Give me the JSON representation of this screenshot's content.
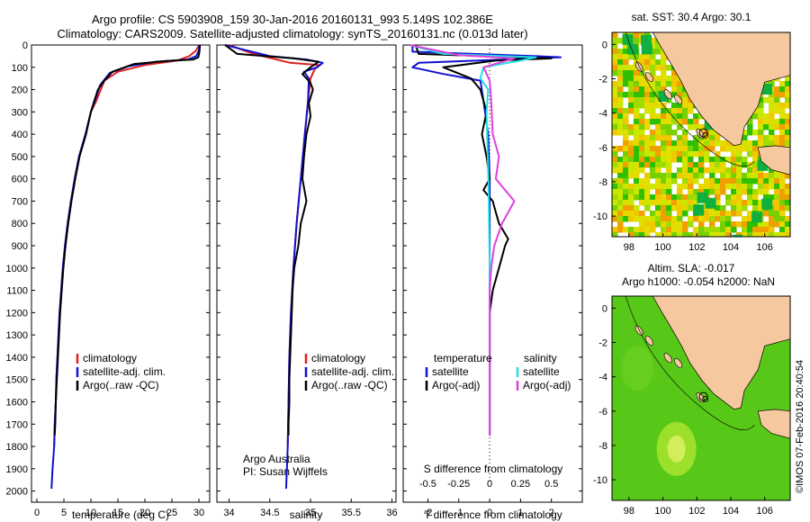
{
  "header": {
    "line1": "Argo profile: CS 5903908_159 30-Jan-2016 20160131_993 5.149S 102.386E",
    "line2": "Climatology: CARS2009. Satellite-adjusted climatology: synTS_20160131.nc (0.013d later)"
  },
  "credits": {
    "institution": "Argo Australia",
    "pi": "PI: Susan Wijffels",
    "watermark": "©IMOS 07-Feb-2016 20:40:54"
  },
  "colors": {
    "climatology": "#e02020",
    "satellite": "#1010d0",
    "argo": "#000000",
    "sal_satellite": "#20e0e0",
    "sal_argo": "#e040e0",
    "land": "#f5c8a0",
    "sea_dark": "#20b020"
  },
  "chart_data": [
    {
      "type": "line",
      "panel": "temperature",
      "xlabel": "temperature (deg C)",
      "ylim": [
        2050,
        0
      ],
      "xlim": [
        -1,
        32
      ],
      "xticks": [
        0,
        5,
        10,
        15,
        20,
        25,
        30
      ],
      "yticks": [
        0,
        100,
        200,
        300,
        400,
        500,
        600,
        700,
        800,
        900,
        1000,
        1100,
        1200,
        1300,
        1400,
        1500,
        1600,
        1700,
        1800,
        1900,
        2000
      ],
      "series": [
        {
          "name": "climatology",
          "color": "#e02020",
          "points": [
            [
              30.0,
              0
            ],
            [
              29.5,
              25
            ],
            [
              28.2,
              50
            ],
            [
              26.0,
              70
            ],
            [
              20.0,
              90
            ],
            [
              15.0,
              120
            ],
            [
              12.5,
              160
            ],
            [
              11.0,
              250
            ],
            [
              10.0,
              300
            ],
            [
              9.0,
              400
            ],
            [
              7.8,
              500
            ],
            [
              7.0,
              600
            ],
            [
              6.3,
              700
            ],
            [
              5.7,
              800
            ],
            [
              5.2,
              900
            ],
            [
              4.8,
              1000
            ],
            [
              4.5,
              1100
            ],
            [
              4.2,
              1200
            ],
            [
              4.0,
              1300
            ],
            [
              3.8,
              1400
            ],
            [
              3.6,
              1500
            ],
            [
              3.5,
              1600
            ],
            [
              3.3,
              1700
            ],
            [
              3.2,
              1800
            ]
          ]
        },
        {
          "name": "satellite-adj. clim.",
          "color": "#1010d0",
          "points": [
            [
              30.1,
              0
            ],
            [
              30.0,
              25
            ],
            [
              29.5,
              50
            ],
            [
              28.0,
              65
            ],
            [
              22.0,
              75
            ],
            [
              17.0,
              95
            ],
            [
              13.5,
              125
            ],
            [
              11.7,
              180
            ],
            [
              10.6,
              260
            ],
            [
              10.0,
              300
            ],
            [
              9.0,
              400
            ],
            [
              7.8,
              500
            ],
            [
              7.0,
              600
            ],
            [
              6.3,
              700
            ],
            [
              5.7,
              800
            ],
            [
              5.2,
              900
            ],
            [
              4.8,
              1000
            ],
            [
              4.5,
              1100
            ],
            [
              4.2,
              1200
            ],
            [
              4.0,
              1300
            ],
            [
              3.8,
              1400
            ],
            [
              3.6,
              1500
            ],
            [
              3.5,
              1600
            ],
            [
              3.3,
              1700
            ],
            [
              3.2,
              1800
            ],
            [
              2.9,
              1900
            ],
            [
              2.7,
              1990
            ]
          ]
        },
        {
          "name": "Argo(..raw -QC)",
          "color": "#000000",
          "points": [
            [
              30.2,
              0
            ],
            [
              30.1,
              30
            ],
            [
              29.9,
              55
            ],
            [
              29.0,
              65
            ],
            [
              24.0,
              72
            ],
            [
              18.0,
              85
            ],
            [
              14.0,
              120
            ],
            [
              12.5,
              160
            ],
            [
              11.3,
              200
            ],
            [
              10.5,
              260
            ],
            [
              10.0,
              300
            ],
            [
              9.1,
              400
            ],
            [
              7.9,
              500
            ],
            [
              7.1,
              600
            ],
            [
              6.4,
              700
            ],
            [
              5.8,
              800
            ],
            [
              5.3,
              900
            ],
            [
              4.9,
              1000
            ],
            [
              4.6,
              1100
            ],
            [
              4.3,
              1200
            ],
            [
              4.1,
              1300
            ],
            [
              3.9,
              1400
            ],
            [
              3.7,
              1500
            ],
            [
              3.5,
              1600
            ],
            [
              3.4,
              1700
            ],
            [
              3.3,
              1750
            ]
          ]
        }
      ],
      "legend": [
        "climatology",
        "satellite-adj. clim.",
        "Argo(..raw -QC)"
      ]
    },
    {
      "type": "line",
      "panel": "salinity",
      "xlabel": "salinity",
      "ylim": [
        2050,
        0
      ],
      "xlim": [
        33.85,
        36.05
      ],
      "xticks": [
        34,
        34.5,
        35,
        35.5,
        36
      ],
      "series": [
        {
          "name": "climatology",
          "color": "#e02020",
          "points": [
            [
              34.0,
              0
            ],
            [
              34.3,
              40
            ],
            [
              34.75,
              80
            ],
            [
              35.1,
              90
            ],
            [
              35.05,
              110
            ],
            [
              35.0,
              150
            ],
            [
              34.97,
              250
            ],
            [
              34.93,
              400
            ],
            [
              34.88,
              600
            ],
            [
              34.83,
              800
            ],
            [
              34.79,
              1000
            ],
            [
              34.76,
              1200
            ],
            [
              34.74,
              1400
            ],
            [
              34.73,
              1600
            ],
            [
              34.72,
              1800
            ]
          ]
        },
        {
          "name": "satellite-adj. clim.",
          "color": "#1010d0",
          "points": [
            [
              33.95,
              0
            ],
            [
              34.5,
              50
            ],
            [
              34.95,
              65
            ],
            [
              35.15,
              80
            ],
            [
              35.08,
              100
            ],
            [
              34.92,
              120
            ],
            [
              34.98,
              150
            ],
            [
              34.97,
              250
            ],
            [
              34.93,
              400
            ],
            [
              34.88,
              600
            ],
            [
              34.83,
              800
            ],
            [
              34.79,
              1000
            ],
            [
              34.76,
              1200
            ],
            [
              34.74,
              1400
            ],
            [
              34.73,
              1600
            ],
            [
              34.72,
              1800
            ],
            [
              34.71,
              1900
            ],
            [
              34.7,
              1990
            ]
          ]
        },
        {
          "name": "Argo(..raw -QC)",
          "color": "#000000",
          "points": [
            [
              33.95,
              0
            ],
            [
              34.1,
              40
            ],
            [
              34.8,
              60
            ],
            [
              35.1,
              75
            ],
            [
              35.0,
              100
            ],
            [
              34.9,
              130
            ],
            [
              35.0,
              170
            ],
            [
              35.03,
              200
            ],
            [
              34.98,
              260
            ],
            [
              35.0,
              320
            ],
            [
              34.95,
              400
            ],
            [
              34.92,
              500
            ],
            [
              34.9,
              600
            ],
            [
              34.95,
              700
            ],
            [
              34.88,
              800
            ],
            [
              34.85,
              900
            ],
            [
              34.8,
              1000
            ],
            [
              34.78,
              1100
            ],
            [
              34.77,
              1200
            ],
            [
              34.76,
              1300
            ],
            [
              34.75,
              1400
            ],
            [
              34.74,
              1500
            ],
            [
              34.74,
              1600
            ],
            [
              34.73,
              1700
            ],
            [
              34.73,
              1750
            ]
          ]
        }
      ],
      "legend": [
        "climatology",
        "satellite-adj. clim.",
        "Argo(..raw -QC)"
      ]
    },
    {
      "type": "line",
      "panel": "difference",
      "xlabel_bottom": "T difference from climatology",
      "xlabel_top": "S difference from climatology",
      "ylim": [
        2050,
        0
      ],
      "xlim": [
        -2.8,
        3.0
      ],
      "xticks_T": [
        -2,
        -1,
        0,
        1,
        2
      ],
      "xticks_S": [
        -0.5,
        -0.25,
        0,
        0.25,
        0.5
      ],
      "series": [
        {
          "name": "temperature satellite",
          "color": "#1010d0",
          "points": [
            [
              -2.5,
              0
            ],
            [
              -2.5,
              30
            ],
            [
              1.5,
              50
            ],
            [
              2.3,
              55
            ],
            [
              0.5,
              65
            ],
            [
              -2.3,
              80
            ],
            [
              -2.5,
              100
            ],
            [
              -1.5,
              130
            ],
            [
              -0.3,
              160
            ],
            [
              -0.2,
              250
            ],
            [
              -0.05,
              400
            ],
            [
              0,
              600
            ],
            [
              0,
              800
            ],
            [
              0,
              1000
            ],
            [
              0,
              1200
            ],
            [
              0,
              1400
            ],
            [
              0,
              1600
            ],
            [
              0,
              1750
            ]
          ]
        },
        {
          "name": "temperature Argo(-adj)",
          "color": "#000000",
          "points": [
            [
              -2.4,
              0
            ],
            [
              -2.3,
              40
            ],
            [
              1.0,
              55
            ],
            [
              2.0,
              60
            ],
            [
              0.2,
              70
            ],
            [
              -1.5,
              100
            ],
            [
              -0.6,
              150
            ],
            [
              -0.3,
              200
            ],
            [
              -0.1,
              300
            ],
            [
              -0.25,
              400
            ],
            [
              -0.1,
              500
            ],
            [
              0,
              600
            ],
            [
              -0.2,
              650
            ],
            [
              0.1,
              700
            ],
            [
              0.2,
              750
            ],
            [
              0.3,
              800
            ],
            [
              0.6,
              870
            ],
            [
              0.5,
              900
            ],
            [
              0.3,
              1000
            ],
            [
              0.1,
              1100
            ],
            [
              0,
              1200
            ],
            [
              0,
              1300
            ],
            [
              0,
              1500
            ],
            [
              0,
              1750
            ]
          ]
        },
        {
          "name": "salinity satellite",
          "color": "#20e0e0",
          "points": [
            [
              -2.6,
              0
            ],
            [
              -1.5,
              40
            ],
            [
              1.5,
              55
            ],
            [
              1.0,
              70
            ],
            [
              -0.2,
              100
            ],
            [
              -0.3,
              150
            ],
            [
              -0.05,
              200
            ],
            [
              -0.1,
              300
            ],
            [
              -0.08,
              400
            ],
            [
              -0.06,
              500
            ],
            [
              -0.04,
              600
            ],
            [
              -0.02,
              800
            ],
            [
              0,
              1000
            ],
            [
              0,
              1300
            ],
            [
              0,
              1600
            ],
            [
              0,
              1750
            ]
          ]
        },
        {
          "name": "salinity Argo(-adj)",
          "color": "#e040e0",
          "points": [
            [
              -2.6,
              0
            ],
            [
              -1.0,
              45
            ],
            [
              0.8,
              60
            ],
            [
              0.3,
              80
            ],
            [
              -0.2,
              100
            ],
            [
              0,
              160
            ],
            [
              0.05,
              250
            ],
            [
              0.1,
              400
            ],
            [
              0.3,
              500
            ],
            [
              0.2,
              600
            ],
            [
              0.5,
              650
            ],
            [
              0.8,
              700
            ],
            [
              0.6,
              750
            ],
            [
              0.4,
              800
            ],
            [
              0.15,
              900
            ],
            [
              0.05,
              1000
            ],
            [
              0,
              1100
            ],
            [
              0,
              1300
            ],
            [
              0,
              1600
            ],
            [
              0,
              1750
            ]
          ]
        }
      ],
      "legend_headers": [
        "temperature",
        "salinity"
      ],
      "legend_left": [
        "satellite",
        "Argo(-adj)"
      ],
      "legend_right": [
        "satellite",
        "Argo(-adj)"
      ]
    },
    {
      "type": "heatmap",
      "panel": "sst-map",
      "title": "sat. SST: 30.4  Argo: 30.1",
      "xlim": [
        97,
        107.5
      ],
      "ylim": [
        -11.2,
        0.7
      ],
      "xticks": [
        98,
        100,
        102,
        104,
        106
      ],
      "yticks": [
        0,
        -2,
        -4,
        -6,
        -8,
        -10
      ]
    },
    {
      "type": "heatmap",
      "panel": "sla-map",
      "title_line1": "Altim. SLA: -0.017",
      "title_line2": "Argo h1000: -0.054 h2000: NaN",
      "xlim": [
        97,
        107.5
      ],
      "ylim": [
        -11.2,
        0.7
      ],
      "xticks": [
        98,
        100,
        102,
        104,
        106
      ],
      "yticks": [
        0,
        -2,
        -4,
        -6,
        -8,
        -10
      ]
    }
  ]
}
